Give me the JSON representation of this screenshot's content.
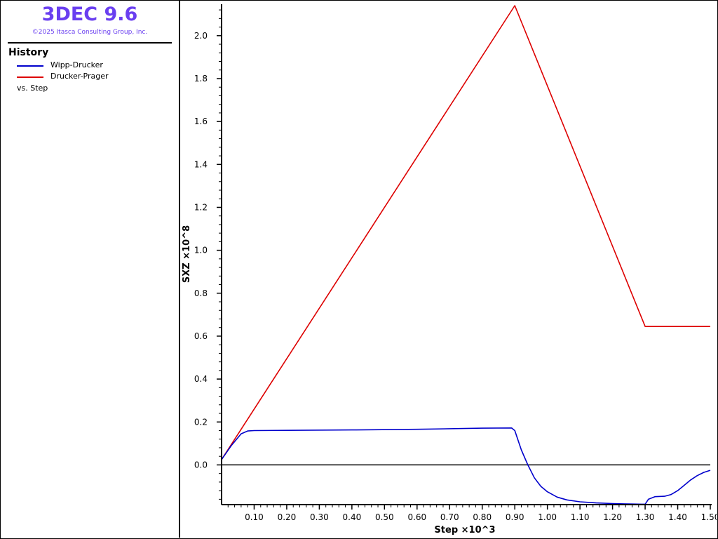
{
  "app": {
    "title": "3DEC 9.6",
    "copyright": "©2025 Itasca Consulting Group, Inc."
  },
  "legend": {
    "title": "History",
    "entries": [
      {
        "label": "Wipp-Drucker",
        "color": "#0000cc"
      },
      {
        "label": "Drucker-Prager",
        "color": "#dd0000"
      }
    ],
    "vs": "vs. Step"
  },
  "chart_data": {
    "type": "line",
    "xlabel": "Step ×10^3",
    "ylabel": "SXZ ×10^8",
    "xlim": [
      0.0,
      1.5
    ],
    "ylim": [
      -0.185,
      2.14
    ],
    "xticks": [
      "0.10",
      "0.20",
      "0.30",
      "0.40",
      "0.50",
      "0.60",
      "0.70",
      "0.80",
      "0.90",
      "1.00",
      "1.10",
      "1.20",
      "1.30",
      "1.40",
      "1.50"
    ],
    "yticks": [
      "0.0",
      "0.2",
      "0.4",
      "0.6",
      "0.8",
      "1.0",
      "1.2",
      "1.4",
      "1.6",
      "1.8",
      "2.0"
    ],
    "zero_line": true,
    "series": [
      {
        "name": "Wipp-Drucker",
        "color": "#0000cc",
        "x": [
          0.0,
          0.03,
          0.06,
          0.08,
          0.1,
          0.2,
          0.4,
          0.6,
          0.8,
          0.89,
          0.9,
          0.92,
          0.94,
          0.96,
          0.98,
          1.0,
          1.03,
          1.06,
          1.1,
          1.15,
          1.2,
          1.25,
          1.29,
          1.3,
          1.31,
          1.33,
          1.36,
          1.38,
          1.4,
          1.42,
          1.44,
          1.46,
          1.48,
          1.5
        ],
        "y": [
          0.025,
          0.09,
          0.145,
          0.158,
          0.16,
          0.161,
          0.163,
          0.166,
          0.171,
          0.172,
          0.16,
          0.07,
          0.0,
          -0.06,
          -0.1,
          -0.125,
          -0.15,
          -0.163,
          -0.172,
          -0.177,
          -0.18,
          -0.182,
          -0.183,
          -0.183,
          -0.16,
          -0.148,
          -0.146,
          -0.138,
          -0.12,
          -0.095,
          -0.07,
          -0.05,
          -0.035,
          -0.025
        ]
      },
      {
        "name": "Drucker-Prager",
        "color": "#dd0000",
        "x": [
          0.0,
          0.9,
          1.3,
          1.5
        ],
        "y": [
          0.025,
          2.14,
          0.645,
          0.645
        ]
      }
    ]
  }
}
